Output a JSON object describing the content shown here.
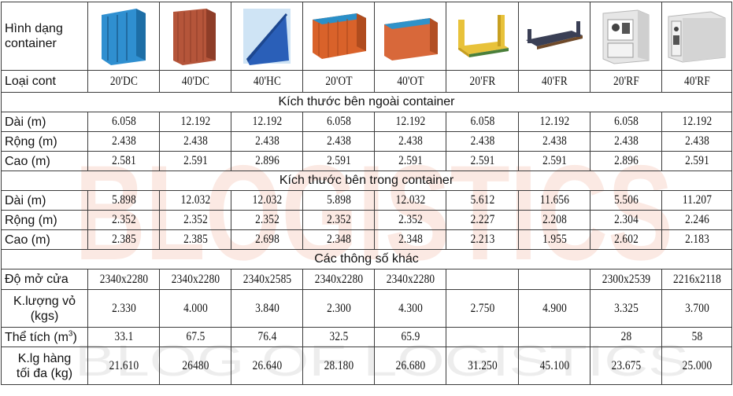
{
  "labels": {
    "shape": "Hình dạng container",
    "type": "Loại cont",
    "length": "Dài (m)",
    "width": "Rộng (m)",
    "height": "Cao (m)",
    "door": "Độ mở cửa",
    "tare_line1": "K.lượng vỏ",
    "tare_line2": "(kgs)",
    "volume": "Thể tích (m",
    "volume_sup": "3",
    "volume_close": ")",
    "payload_line1": "K.lg hàng",
    "payload_line2": "tối đa (kg)"
  },
  "sections": {
    "external": "Kích thước bên ngoài container",
    "internal": "Kích thước bên trong container",
    "other": "Các thông số khác"
  },
  "watermark": {
    "logo": "BLOGISTICS",
    "tagline": "BLOG OF LOGISTICS"
  },
  "types": [
    "20'DC",
    "40'DC",
    "40'HC",
    "20'OT",
    "40'OT",
    "20'FR",
    "40'FR",
    "20'RF",
    "40'RF"
  ],
  "external": {
    "length": [
      "6.058",
      "12.192",
      "12.192",
      "6.058",
      "12.192",
      "6.058",
      "12.192",
      "6.058",
      "12.192"
    ],
    "width": [
      "2.438",
      "2.438",
      "2.438",
      "2.438",
      "2.438",
      "2.438",
      "2.438",
      "2.438",
      "2.438"
    ],
    "height": [
      "2.581",
      "2.591",
      "2.896",
      "2.591",
      "2.591",
      "2.591",
      "2.591",
      "2.896",
      "2.591"
    ]
  },
  "internal": {
    "length": [
      "5.898",
      "12.032",
      "12.032",
      "5.898",
      "12.032",
      "5.612",
      "11.656",
      "5.506",
      "11.207"
    ],
    "width": [
      "2.352",
      "2.352",
      "2.352",
      "2.352",
      "2.352",
      "2.227",
      "2.208",
      "2.304",
      "2.246"
    ],
    "height": [
      "2.385",
      "2.385",
      "2.698",
      "2.348",
      "2.348",
      "2.213",
      "1.955",
      "2.602",
      "2.183"
    ]
  },
  "other": {
    "door": [
      "2340x2280",
      "2340x2280",
      "2340x2585",
      "2340x2280",
      "2340x2280",
      "",
      "",
      "2300x2539",
      "2216x2118"
    ],
    "tare": [
      "2.330",
      "4.000",
      "3.840",
      "2.300",
      "4.300",
      "2.750",
      "4.900",
      "3.325",
      "3.700"
    ],
    "volume": [
      "33.1",
      "67.5",
      "76.4",
      "32.5",
      "65.9",
      "",
      "",
      "28",
      "58"
    ],
    "payload": [
      "21.610",
      "26480",
      "26.640",
      "28.180",
      "26.680",
      "31.250",
      "45.100",
      "23.675",
      "25.000"
    ]
  },
  "colors": {
    "dc20": "#2f8fd0",
    "dc40": "#b5553a",
    "hc40": "#2a5fb8",
    "ot20": "#d9622a",
    "ot40": "#d8683a",
    "fr20": "#e8c23a",
    "fr40": "#3a3f55",
    "rf": "#e6e6e6",
    "watermark": "#e87a5a"
  }
}
